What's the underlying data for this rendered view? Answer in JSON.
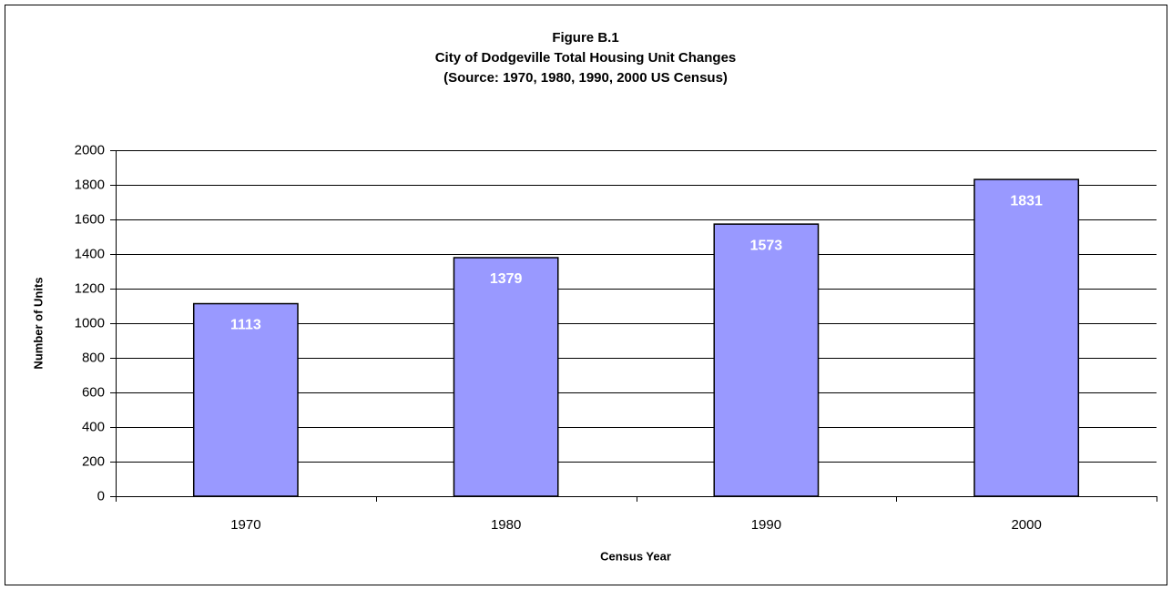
{
  "chart_data": {
    "type": "bar",
    "title": [
      "Figure B.1",
      "City of Dodgeville Total Housing Unit Changes",
      "(Source:  1970, 1980, 1990, 2000 US Census)"
    ],
    "x_label": "Census Year",
    "y_label": "Number of Units",
    "categories": [
      "1970",
      "1980",
      "1990",
      "2000"
    ],
    "values": [
      1113,
      1379,
      1573,
      1831
    ],
    "color": "#9999ff",
    "ylim": [
      0,
      2000
    ],
    "yticks": [
      0,
      200,
      400,
      600,
      800,
      1000,
      1200,
      1400,
      1600,
      1800,
      2000
    ],
    "grid": true
  }
}
